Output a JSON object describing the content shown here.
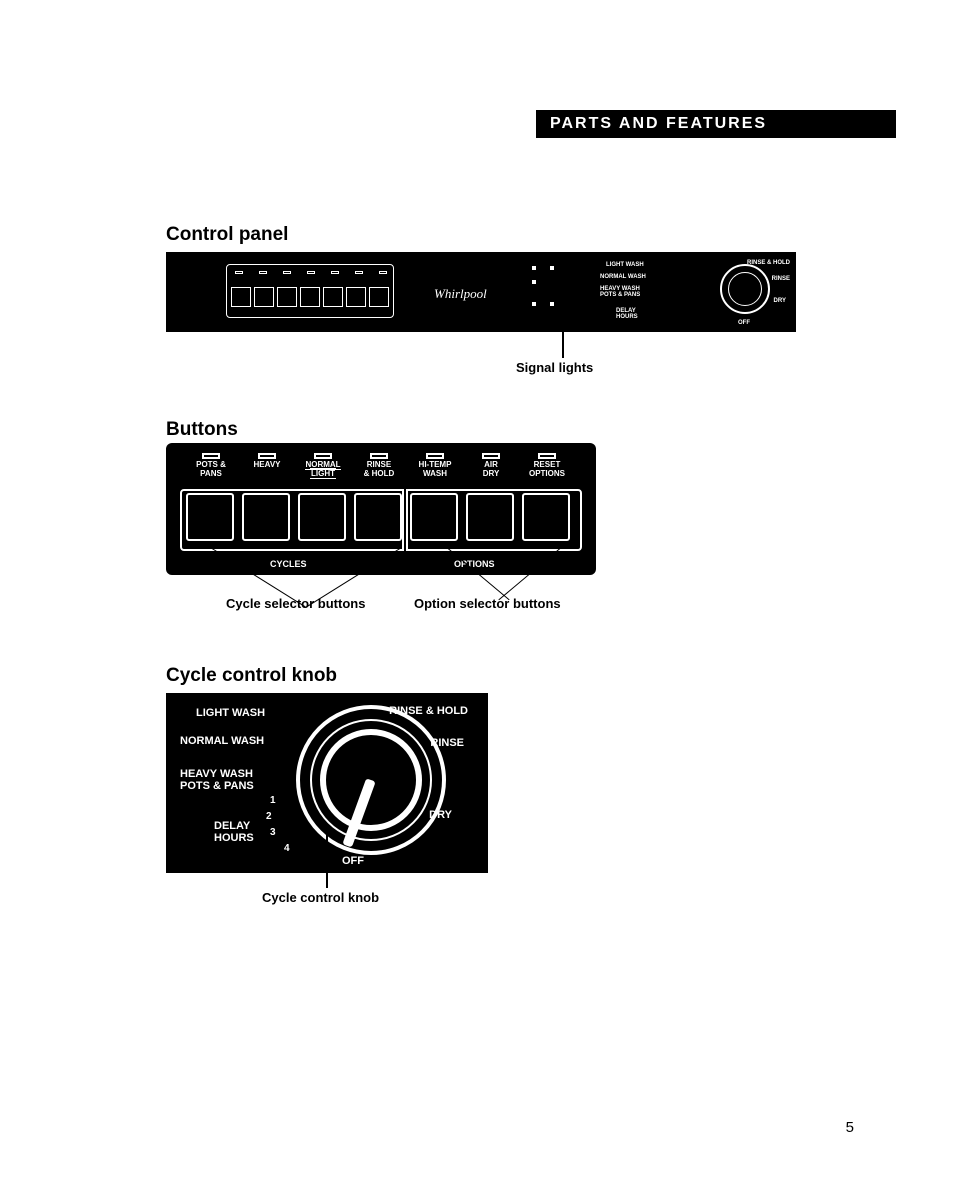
{
  "banner": "PARTS AND FEATURES",
  "headings": {
    "control_panel": "Control panel",
    "buttons": "Buttons",
    "knob": "Cycle control knob"
  },
  "brand": "Whirlpool",
  "callouts": {
    "signal_lights": "Signal lights",
    "cycle_selector": "Cycle selector buttons",
    "option_selector": "Option selector buttons",
    "cycle_knob": "Cycle control knob"
  },
  "buttons": [
    {
      "label": "POTS &\nPANS"
    },
    {
      "label": "HEAVY"
    },
    {
      "label_top": "NORMAL",
      "label_bot": "LIGHT"
    },
    {
      "label": "RINSE\n& HOLD"
    },
    {
      "label": "HI-TEMP\nWASH"
    },
    {
      "label": "AIR\nDRY"
    },
    {
      "label": "RESET\nOPTIONS"
    }
  ],
  "button_groups": {
    "cycles": "CYCLES",
    "options": "OPTIONS"
  },
  "knob_labels": {
    "light_wash": "LIGHT WASH",
    "normal_wash": "NORMAL WASH",
    "heavy_wash": "HEAVY WASH\nPOTS & PANS",
    "delay_hours": "DELAY\nHOURS",
    "off": "OFF",
    "dry": "DRY",
    "rinse": "RINSE",
    "rinse_hold": "RINSE & HOLD",
    "n1": "1",
    "n2": "2",
    "n3": "3",
    "n4": "4"
  },
  "mini_knob_labels": {
    "light_wash": "LIGHT WASH",
    "normal_wash": "NORMAL WASH",
    "heavy_wash": "HEAVY WASH\nPOTS & PANS",
    "delay_hours": "DELAY\nHOURS",
    "off": "OFF",
    "dry": "DRY",
    "rinse": "RINSE",
    "rinse_hold": "RINSE & HOLD"
  },
  "page_number": "5"
}
